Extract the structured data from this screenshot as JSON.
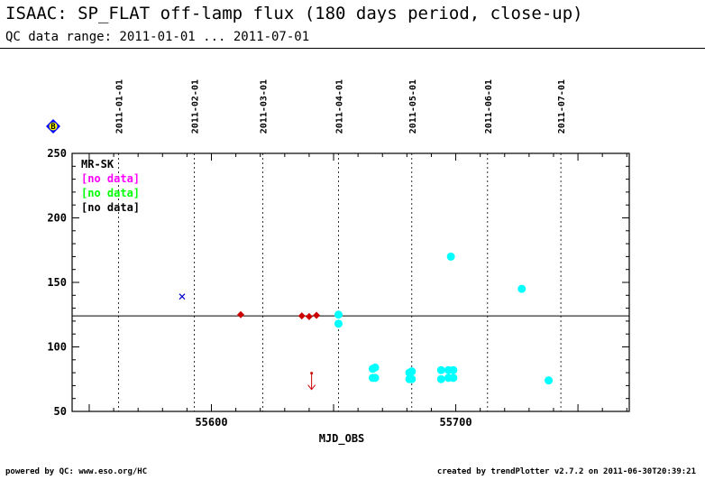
{
  "header": {
    "title": "ISAAC: SP_FLAT off-lamp flux (180 days period, close-up)",
    "subtitle": "QC data range: 2011-01-01 ... 2011-07-01"
  },
  "footer": {
    "left": "powered by QC: www.eso.org/HC",
    "right": "created by trendPlotter v2.7.2 on 2011-06-30T20:39:21"
  },
  "colors": {
    "red": "#cc0000",
    "cyan": "#00ffff",
    "blue": "#0000cc",
    "magenta": "#ff00ff",
    "green": "#00ff00",
    "badge_fill": "#0000ff",
    "badge_inner": "#ffff00"
  },
  "chart_data": {
    "type": "scatter",
    "xlabel": "MJD_OBS",
    "ylabel": "",
    "xlim": [
      55543,
      55771
    ],
    "ylim": [
      50,
      250
    ],
    "y_ticks": [
      50,
      100,
      150,
      200,
      250
    ],
    "x_ticks": [
      55600,
      55700
    ],
    "badge": "B",
    "date_markers": [
      {
        "label": "2011-01-01",
        "mjd": 55562
      },
      {
        "label": "2011-02-01",
        "mjd": 55593
      },
      {
        "label": "2011-03-01",
        "mjd": 55621
      },
      {
        "label": "2011-04-01",
        "mjd": 55652
      },
      {
        "label": "2011-05-01",
        "mjd": 55682
      },
      {
        "label": "2011-06-01",
        "mjd": 55713
      },
      {
        "label": "2011-07-01",
        "mjd": 55743
      }
    ],
    "reference_line": 124,
    "legend": [
      {
        "label": "MR-SK",
        "color": "#000000"
      },
      {
        "label": "[no data]",
        "color": "#ff00ff"
      },
      {
        "label": "[no data]",
        "color": "#00ff00"
      },
      {
        "label": "[no data]",
        "color": "#000000"
      }
    ],
    "series": [
      {
        "marker": "diamond",
        "color": "#cc0000",
        "points": [
          [
            55612,
            125
          ],
          [
            55637,
            124
          ],
          [
            55640,
            123.5
          ],
          [
            55643,
            124.5
          ]
        ]
      },
      {
        "marker": "circle",
        "color": "#00ffff",
        "points": [
          [
            55652,
            125
          ],
          [
            55652,
            118
          ],
          [
            55666,
            83
          ],
          [
            55667,
            84
          ],
          [
            55666,
            76
          ],
          [
            55667,
            76
          ],
          [
            55681,
            80
          ],
          [
            55682,
            81
          ],
          [
            55681,
            75
          ],
          [
            55682,
            75
          ],
          [
            55694,
            82
          ],
          [
            55697,
            82
          ],
          [
            55699,
            82
          ],
          [
            55694,
            75
          ],
          [
            55697,
            76
          ],
          [
            55699,
            76
          ],
          [
            55698,
            170
          ],
          [
            55727,
            145
          ],
          [
            55738,
            74
          ]
        ]
      },
      {
        "marker": "cross",
        "color": "#0000cc",
        "points": [
          [
            55588,
            139
          ]
        ]
      },
      {
        "marker": "arrow-down",
        "color": "#cc0000",
        "points": [
          [
            55641,
            74
          ]
        ]
      }
    ]
  }
}
